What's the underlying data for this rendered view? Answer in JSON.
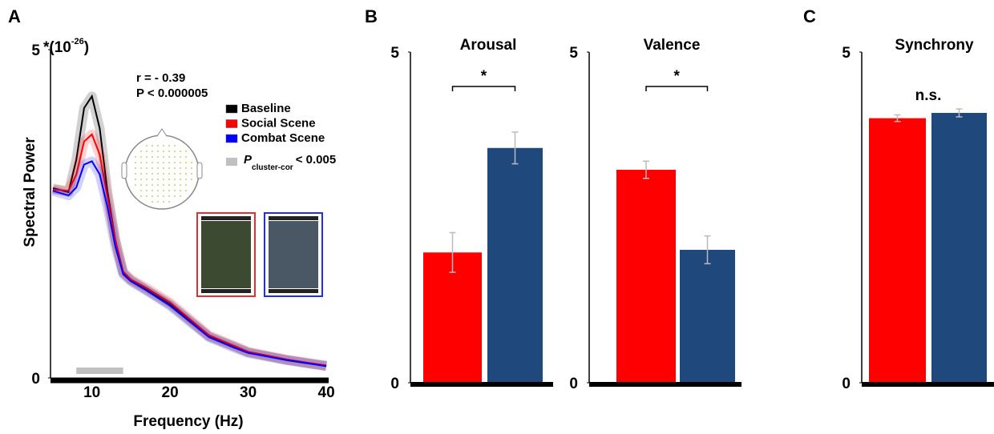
{
  "chart_data": [
    {
      "type": "line",
      "panel_label": "A",
      "xlabel": "Frequency (Hz)",
      "ylabel": "Spectral Power",
      "y_unit": {
        "prefix": "*(10",
        "exponent": "-26",
        "suffix": ")"
      },
      "annotations": [
        "r = - 0.39",
        "P < 0.000005"
      ],
      "x": [
        5,
        7,
        8,
        9,
        10,
        11,
        12,
        13,
        14,
        15,
        17,
        20,
        25,
        28,
        30,
        35,
        40
      ],
      "series": [
        {
          "name": "Baseline",
          "color": "#000000",
          "values": [
            2.89,
            2.83,
            3.32,
            4.11,
            4.29,
            3.8,
            2.83,
            2.1,
            1.6,
            1.49,
            1.34,
            1.12,
            0.63,
            0.49,
            0.39,
            0.27,
            0.18
          ]
        },
        {
          "name": "Social Scene",
          "color": "#ff0000",
          "values": [
            2.87,
            2.85,
            3.1,
            3.6,
            3.71,
            3.4,
            2.75,
            2.1,
            1.62,
            1.5,
            1.37,
            1.15,
            0.65,
            0.5,
            0.4,
            0.28,
            0.19
          ]
        },
        {
          "name": "Combat Scene",
          "color": "#0000ff",
          "values": [
            2.85,
            2.78,
            2.9,
            3.25,
            3.3,
            3.1,
            2.6,
            2.0,
            1.58,
            1.47,
            1.33,
            1.1,
            0.62,
            0.47,
            0.38,
            0.27,
            0.18
          ]
        }
      ],
      "significance": {
        "range": [
          8,
          14
        ],
        "color": "#c0c0c0",
        "label": {
          "symbol": "P",
          "subscript": "cluster-cor",
          "text": "< 0.005"
        }
      },
      "xlim": [
        4.7,
        40.3
      ],
      "xticks": [
        10,
        20,
        30,
        40
      ],
      "ylim": [
        0,
        5
      ],
      "yticks": [
        0,
        5
      ]
    },
    {
      "type": "bar",
      "panel_label": "B",
      "title": "Arousal",
      "values": [
        1.97,
        3.55
      ],
      "errors": [
        0.3,
        0.24
      ],
      "colors": [
        "#ff0000",
        "#1f497d"
      ],
      "significance": "*",
      "ylim": [
        0,
        5
      ],
      "yticks": [
        0,
        5
      ]
    },
    {
      "type": "bar",
      "title": "Valence",
      "values": [
        3.22,
        2.01
      ],
      "errors": [
        0.13,
        0.21
      ],
      "colors": [
        "#ff0000",
        "#1f497d"
      ],
      "significance": "*",
      "ylim": [
        0,
        5
      ],
      "yticks": [
        0,
        5
      ]
    },
    {
      "type": "bar",
      "panel_label": "C",
      "title": "Synchrony",
      "values": [
        4.0,
        4.08
      ],
      "errors": [
        0.05,
        0.06
      ],
      "colors": [
        "#ff0000",
        "#1f497d"
      ],
      "significance": "n.s.",
      "ylim": [
        0,
        5
      ],
      "yticks": [
        0,
        5
      ]
    }
  ]
}
